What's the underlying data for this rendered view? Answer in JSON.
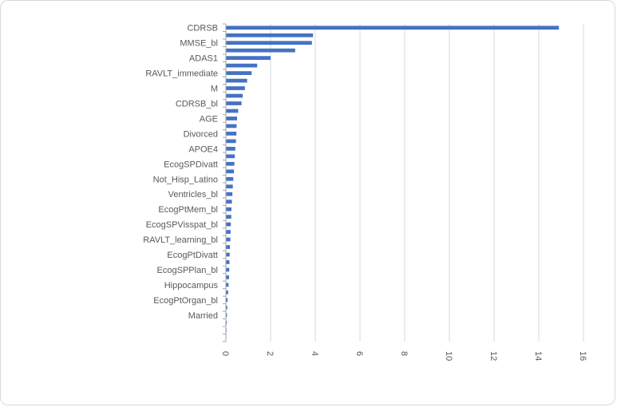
{
  "chart_data": {
    "type": "bar",
    "orientation": "horizontal",
    "title": "",
    "xlabel": "",
    "ylabel": "",
    "xlim": [
      0,
      16
    ],
    "x_ticks": [
      0,
      2,
      4,
      6,
      8,
      10,
      12,
      14,
      16
    ],
    "x_tick_labels": [
      "0",
      "2",
      "4",
      "6",
      "8",
      "10",
      "12",
      "14",
      "16"
    ],
    "grid": "vertical",
    "legend": "none",
    "bar_color": "#4472c4",
    "category_labels": [
      "CDRSB",
      "",
      "MMSE_bl",
      "",
      "ADAS1",
      "",
      "RAVLT_immediate",
      "",
      "M",
      "",
      "CDRSB_bl",
      "",
      "AGE",
      "",
      "Divorced",
      "",
      "APOE4",
      "",
      "EcogSPDivatt",
      "",
      "Not_Hisp_Latino",
      "",
      "Ventricles_bl",
      "",
      "EcogPtMem_bl",
      "",
      "EcogSPVisspat_bl",
      "",
      "RAVLT_learning_bl",
      "",
      "EcogPtDivatt",
      "",
      "EcogSPPlan_bl",
      "",
      "Hippocampus",
      "",
      "EcogPtOrgan_bl",
      "",
      "Married",
      "",
      "",
      ""
    ],
    "values": [
      14.9,
      3.9,
      3.85,
      3.1,
      2.0,
      1.4,
      1.15,
      0.95,
      0.85,
      0.75,
      0.7,
      0.55,
      0.5,
      0.48,
      0.47,
      0.45,
      0.42,
      0.4,
      0.38,
      0.36,
      0.33,
      0.31,
      0.29,
      0.27,
      0.25,
      0.24,
      0.22,
      0.21,
      0.2,
      0.18,
      0.17,
      0.16,
      0.15,
      0.14,
      0.12,
      0.1,
      0.08,
      0.06,
      0.05,
      0.04,
      0.03,
      0.02
    ]
  }
}
